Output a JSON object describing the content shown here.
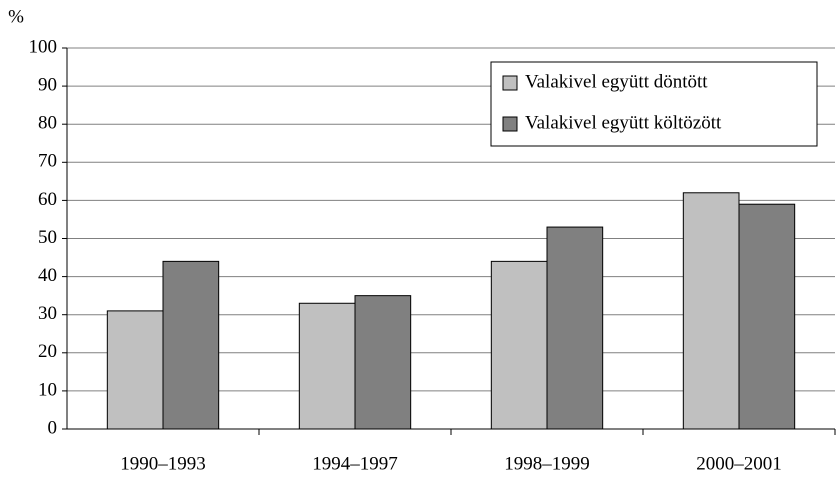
{
  "chart_data": {
    "type": "bar",
    "y_label": "%",
    "categories": [
      "1990–1993",
      "1994–1997",
      "1998–1999",
      "2000–2001"
    ],
    "series": [
      {
        "name": "Valakivel együtt döntött",
        "color": "#c0c0c0",
        "values": [
          31,
          33,
          44,
          62
        ]
      },
      {
        "name": "Valakivel együtt költözött",
        "color": "#808080",
        "values": [
          44,
          35,
          53,
          59
        ]
      }
    ],
    "ylim": [
      0,
      100
    ],
    "yticks": [
      0,
      10,
      20,
      30,
      40,
      50,
      60,
      70,
      80,
      90,
      100
    ],
    "grid": true,
    "legend": "top-right"
  }
}
